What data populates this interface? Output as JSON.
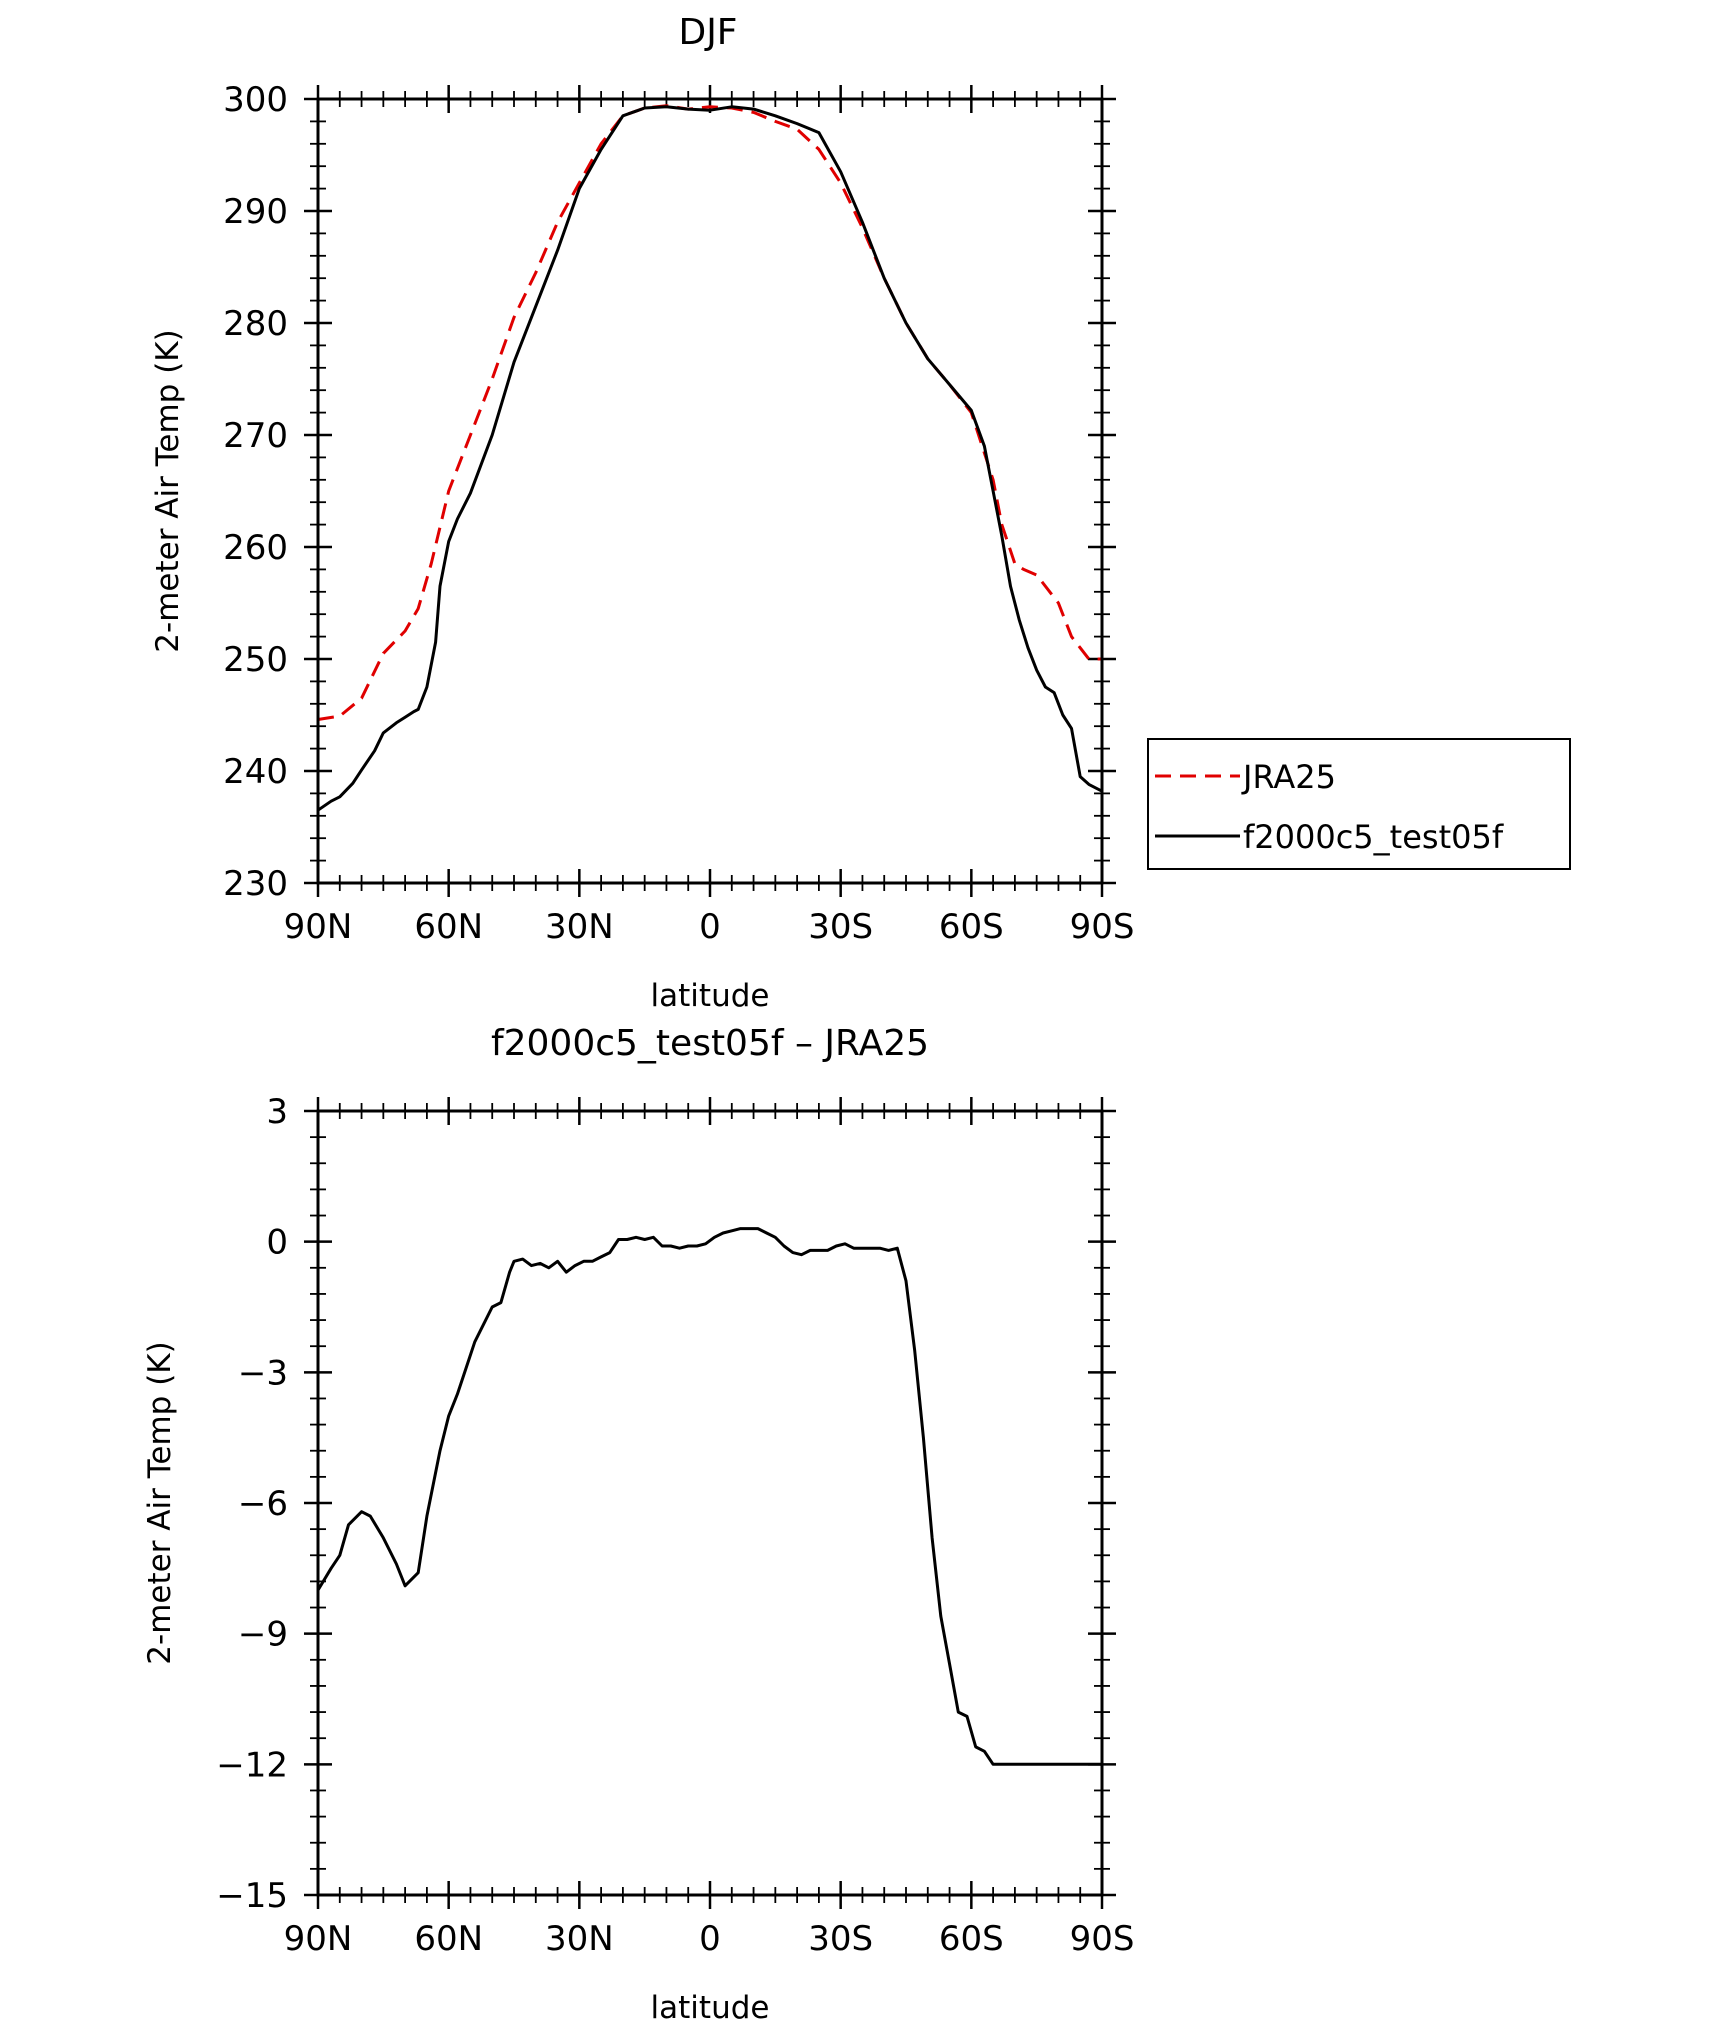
{
  "chart_data": [
    {
      "type": "line",
      "title": "DJF",
      "xlabel": "latitude",
      "ylabel": "2-meter Air Temp (K)",
      "xlim": [
        90,
        -90
      ],
      "ylim": [
        230,
        300
      ],
      "xticks": [
        90,
        60,
        30,
        0,
        -30,
        -60,
        -90
      ],
      "xtick_labels": [
        "90N",
        "60N",
        "30N",
        "0",
        "30S",
        "60S",
        "90S"
      ],
      "yticks": [
        230,
        240,
        250,
        260,
        270,
        280,
        290,
        300
      ],
      "ytick_labels": [
        "230",
        "240",
        "250",
        "260",
        "270",
        "280",
        "290",
        "300"
      ],
      "grid": false,
      "legend_position": "right",
      "series": [
        {
          "name": "JRA25",
          "color": "#e00000",
          "style": "dashed",
          "x": [
            90,
            85,
            80,
            75,
            70,
            67,
            64,
            60,
            57,
            53,
            50,
            45,
            40,
            35,
            30,
            25,
            20,
            15,
            10,
            5,
            0,
            -5,
            -10,
            -15,
            -20,
            -25,
            -30,
            -35,
            -40,
            -45,
            -50,
            -55,
            -60,
            -65,
            -67,
            -70,
            -72,
            -75,
            -80,
            -83,
            -85,
            -87,
            -90
          ],
          "y": [
            244.6,
            244.9,
            246.5,
            250.5,
            252.5,
            254.5,
            258.5,
            265,
            268,
            272,
            275,
            280.5,
            284.5,
            289,
            292.5,
            296,
            298.5,
            299.2,
            299.4,
            299.1,
            299.3,
            299.2,
            298.8,
            298,
            297.3,
            295.5,
            292.5,
            288.5,
            284,
            280,
            276.8,
            274.5,
            272,
            266,
            262,
            258.5,
            258,
            257.5,
            255,
            252,
            251,
            250,
            250
          ]
        },
        {
          "name": "f2000c5_test05f",
          "color": "#000000",
          "style": "solid",
          "x": [
            90,
            87,
            85,
            82,
            80,
            77,
            75,
            72,
            70,
            68,
            67,
            65,
            63,
            62,
            60,
            58,
            55,
            50,
            45,
            40,
            35,
            30,
            25,
            20,
            15,
            10,
            5,
            0,
            -5,
            -10,
            -15,
            -20,
            -25,
            -30,
            -35,
            -40,
            -45,
            -50,
            -55,
            -60,
            -63,
            -65,
            -67,
            -69,
            -71,
            -73,
            -75,
            -77,
            -79,
            -81,
            -83,
            -85,
            -87,
            -90
          ],
          "y": [
            236.5,
            237.3,
            237.7,
            238.9,
            240.1,
            241.8,
            243.4,
            244.3,
            244.8,
            245.3,
            245.5,
            247.5,
            251.5,
            256.5,
            260.5,
            262.5,
            264.8,
            270,
            276.5,
            281.5,
            286.5,
            292,
            295.5,
            298.5,
            299.2,
            299.3,
            299.1,
            299,
            299.3,
            299.1,
            298.5,
            297.8,
            297,
            293.5,
            289,
            284,
            280,
            276.8,
            274.5,
            272.2,
            269,
            265,
            261,
            256.5,
            253.5,
            251,
            249,
            247.5,
            247,
            245,
            243.8,
            239.5,
            238.8,
            238.2
          ]
        }
      ]
    },
    {
      "type": "line",
      "title": "f2000c5_test05f – JRA25",
      "xlabel": "latitude",
      "ylabel": "2-meter Air Temp (K)",
      "xlim": [
        90,
        -90
      ],
      "ylim": [
        -15,
        3
      ],
      "xticks": [
        90,
        60,
        30,
        0,
        -30,
        -60,
        -90
      ],
      "xtick_labels": [
        "90N",
        "60N",
        "30N",
        "0",
        "30S",
        "60S",
        "90S"
      ],
      "yticks": [
        3,
        0,
        -3,
        -6,
        -9,
        -12,
        -15
      ],
      "ytick_labels": [
        "3",
        "0",
        "−3",
        "−6",
        "−9",
        "−12",
        "−15"
      ],
      "grid": false,
      "series": [
        {
          "color": "#000000",
          "style": "solid",
          "x": [
            90,
            87,
            85,
            83,
            80,
            78,
            75,
            72,
            70,
            67,
            65,
            62,
            60,
            58,
            56,
            54,
            52,
            50,
            48,
            46,
            45,
            43,
            41,
            39,
            37,
            35,
            33,
            31,
            29,
            27,
            25,
            23,
            21,
            19,
            17,
            15,
            13,
            11,
            9,
            7,
            5,
            3,
            1,
            -1,
            -3,
            -5,
            -7,
            -9,
            -11,
            -13,
            -15,
            -17,
            -19,
            -21,
            -23,
            -25,
            -27,
            -29,
            -31,
            -33,
            -35,
            -37,
            -39,
            -41,
            -43,
            -45,
            -47,
            -49,
            -51,
            -53,
            -55,
            -57,
            -59,
            -61,
            -63,
            -65,
            -67,
            -69,
            -71,
            -73,
            -75,
            -77,
            -79,
            -81,
            -83,
            -85,
            -87,
            -90
          ],
          "y": [
            -8.0,
            -7.5,
            -7.2,
            -6.5,
            -6.2,
            -6.3,
            -6.8,
            -7.4,
            -7.9,
            -7.6,
            -6.3,
            -4.8,
            -4.0,
            -3.5,
            -2.9,
            -2.3,
            -1.9,
            -1.5,
            -1.4,
            -0.7,
            -0.45,
            -0.4,
            -0.55,
            -0.5,
            -0.6,
            -0.45,
            -0.7,
            -0.55,
            -0.45,
            -0.45,
            -0.35,
            -0.25,
            0.05,
            0.05,
            0.1,
            0.05,
            0.1,
            -0.1,
            -0.1,
            -0.15,
            -0.1,
            -0.1,
            -0.05,
            0.1,
            0.2,
            0.25,
            0.3,
            0.3,
            0.3,
            0.2,
            0.1,
            -0.1,
            -0.25,
            -0.3,
            -0.2,
            -0.2,
            -0.2,
            -0.1,
            -0.05,
            -0.15,
            -0.15,
            -0.15,
            -0.15,
            -0.2,
            -0.15,
            -0.9,
            -2.5,
            -4.5,
            -6.8,
            -8.6,
            -9.7,
            -10.8,
            -10.9,
            -11.6,
            -11.7,
            -12.0,
            -12.0,
            -12.0,
            -12.0,
            -12.0,
            -12.0,
            -12.0,
            -12.0,
            -12.0,
            -12.0,
            -12.0,
            -12.0,
            -12.0
          ]
        }
      ]
    }
  ]
}
